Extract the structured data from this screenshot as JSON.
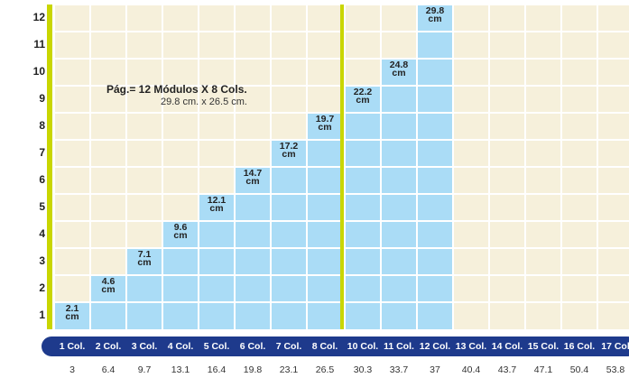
{
  "chart_data": {
    "type": "bar",
    "title": "Pág.= 12 Módulos X 8 Cols.",
    "subtitle": "29.8 cm. x 26.5 cm.",
    "categories": [
      "1 Col.",
      "2 Col.",
      "3 Col.",
      "4 Col.",
      "5 Col.",
      "6 Col.",
      "7 Col.",
      "8 Col.",
      "10 Col.",
      "11 Col.",
      "12 Col.",
      "13 Col.",
      "14 Col.",
      "15 Col.",
      "16 Col.",
      "17 Col"
    ],
    "widths": [
      "3",
      "6.4",
      "9.7",
      "13.1",
      "16.4",
      "19.8",
      "23.1",
      "26.5",
      "30.3",
      "33.7",
      "37",
      "40.4",
      "43.7",
      "47.1",
      "50.4",
      "53.8"
    ],
    "values": [
      1,
      2,
      3,
      4,
      5,
      6,
      7,
      8,
      9,
      10,
      12,
      null,
      null,
      null,
      null,
      null
    ],
    "annotations": [
      [
        "2.1",
        "cm"
      ],
      [
        "4.6",
        "cm"
      ],
      [
        "7.1",
        "cm"
      ],
      [
        "9.6",
        "cm"
      ],
      [
        "12.1",
        "cm"
      ],
      [
        "14.7",
        "cm"
      ],
      [
        "17.2",
        "cm"
      ],
      [
        "19.7",
        "cm"
      ],
      [
        "22.2",
        "cm"
      ],
      [
        "24.8",
        "cm"
      ],
      [
        "29.8",
        "cm"
      ],
      null,
      null,
      null,
      null,
      null
    ],
    "color": "#aadcf6",
    "ylim": [
      0,
      12
    ],
    "yticks": [
      1,
      2,
      3,
      4,
      5,
      6,
      7,
      8,
      9,
      10,
      11,
      12
    ]
  }
}
